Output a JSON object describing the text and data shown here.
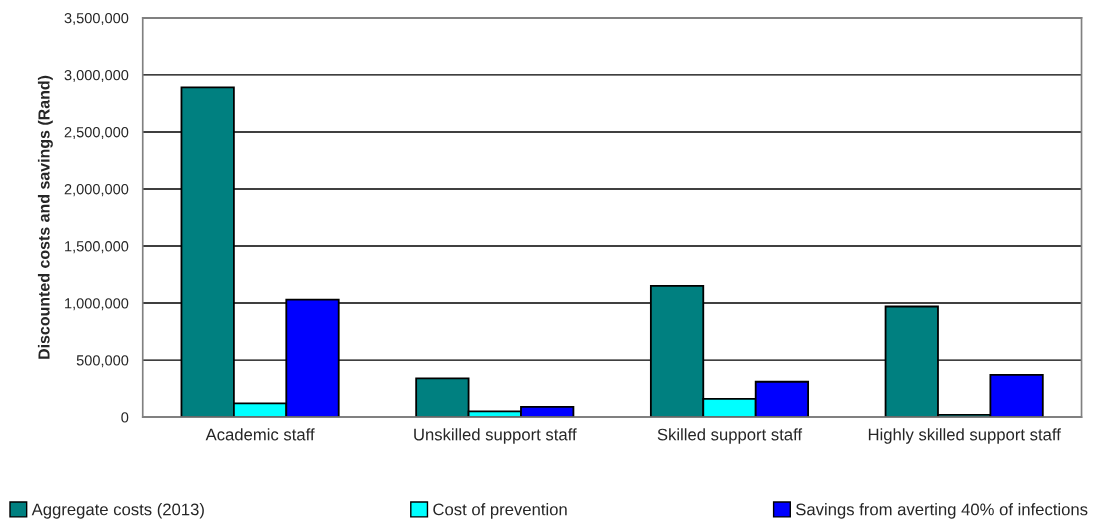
{
  "chart_data": {
    "type": "bar",
    "ylabel": "Discounted costs and savings (Rand)",
    "categories": [
      "Academic staff",
      "Unskilled support staff",
      "Skilled support staff",
      "Highly skilled support staff"
    ],
    "series": [
      {
        "name": "Aggregate costs (2013)",
        "color": "#008080",
        "values": [
          2890000,
          340000,
          1150000,
          970000
        ]
      },
      {
        "name": "Cost of prevention",
        "color": "#00ffff",
        "values": [
          120000,
          50000,
          160000,
          20000
        ]
      },
      {
        "name": "Savings from averting 40% of infections",
        "color": "#0000ff",
        "values": [
          1030000,
          90000,
          310000,
          370000
        ]
      }
    ],
    "ylim": [
      0,
      3500000
    ],
    "yticks": [
      0,
      {
        "value": 500000,
        "label": "500,000"
      },
      {
        "value": 1000000,
        "label": "1,000,000"
      },
      {
        "value": 1500000,
        "label": "1,500,000"
      },
      {
        "value": 2000000,
        "label": "2,000,000"
      },
      {
        "value": 2500000,
        "label": "2,500,000"
      },
      {
        "value": 3000000,
        "label": "3,000,000"
      },
      {
        "value": 3500000,
        "label": "3,500,000"
      }
    ],
    "grid": "y",
    "legend": "bottom"
  }
}
